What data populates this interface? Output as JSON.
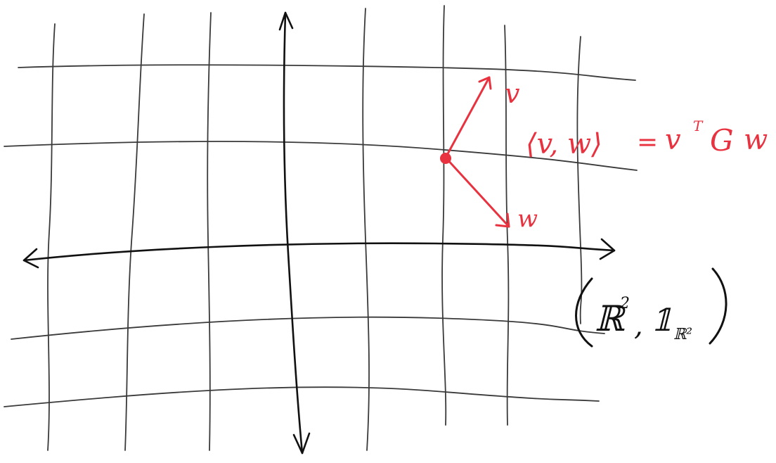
{
  "colors": {
    "background": "#ffffff",
    "grid": "#3a3a3a",
    "axes": "#111111",
    "accent": "#e8323f",
    "ink": "#111111"
  },
  "labels": {
    "vector_v": "v",
    "vector_w": "w",
    "inner_product_lhs": "⟨v, w⟩",
    "inner_product_equals": "=",
    "inner_product_rhs_v": "v",
    "inner_product_rhs_T": "T",
    "inner_product_rhs_G": "G",
    "inner_product_rhs_w": "w",
    "space_R": "ℝ",
    "space_R_exp": "2",
    "space_comma": ",",
    "space_metric": "𝟙",
    "space_metric_sub": "ℝ²"
  }
}
